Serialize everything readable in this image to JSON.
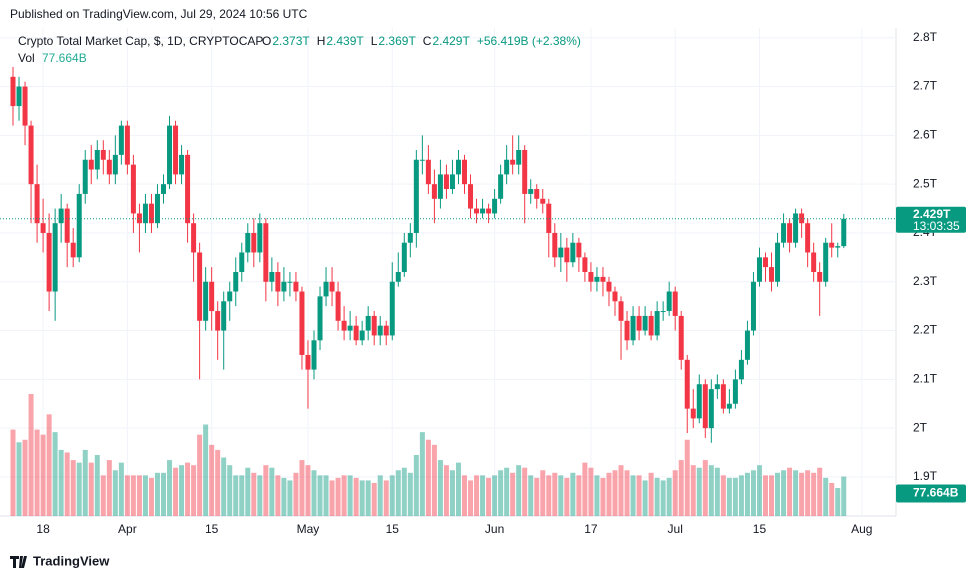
{
  "header": {
    "published": "Published on TradingView.com, Jul 29, 2024 10:56 UTC"
  },
  "legend": {
    "name": "Crypto Total Market Cap, $, 1D, CRYPTOCAP",
    "ohlc": [
      {
        "label": "O",
        "value": "2.373T"
      },
      {
        "label": "H",
        "value": "2.439T"
      },
      {
        "label": "L",
        "value": "2.369T"
      },
      {
        "label": "C",
        "value": "2.429T"
      }
    ],
    "change": "+56.419B (+2.38%)",
    "vol_label": "Vol",
    "vol_value": "77.664B"
  },
  "chart_data": {
    "type": "candlestick",
    "up_color": "#089981",
    "down_color": "#f23645",
    "ylim": [
      1.82,
      2.82
    ],
    "yticks": [
      {
        "value": 2.8,
        "label": "2.8T"
      },
      {
        "value": 2.7,
        "label": "2.7T"
      },
      {
        "value": 2.6,
        "label": "2.6T"
      },
      {
        "value": 2.5,
        "label": "2.5T"
      },
      {
        "value": 2.4,
        "label": "2.4T"
      },
      {
        "value": 2.3,
        "label": "2.3T"
      },
      {
        "value": 2.2,
        "label": "2.2T"
      },
      {
        "value": 2.1,
        "label": "2.1T"
      },
      {
        "value": 2.0,
        "label": "2T"
      },
      {
        "value": 1.9,
        "label": "1.9T"
      }
    ],
    "xticks": [
      {
        "value": 5,
        "label": "18"
      },
      {
        "value": 19,
        "label": "Apr"
      },
      {
        "value": 33,
        "label": "15"
      },
      {
        "value": 49,
        "label": "May"
      },
      {
        "value": 63,
        "label": "15"
      },
      {
        "value": 80,
        "label": "Jun"
      },
      {
        "value": 96,
        "label": "17"
      },
      {
        "value": 110,
        "label": "Jul"
      },
      {
        "value": 124,
        "label": "15"
      },
      {
        "value": 141,
        "label": "Aug"
      }
    ],
    "open": [
      2.72,
      2.66,
      2.7,
      2.62,
      2.5,
      2.42,
      2.4,
      2.28,
      2.42,
      2.45,
      2.38,
      2.35,
      2.48,
      2.55,
      2.53,
      2.57,
      2.55,
      2.52,
      2.56,
      2.62,
      2.54,
      2.44,
      2.42,
      2.46,
      2.42,
      2.48,
      2.5,
      2.62,
      2.52,
      2.56,
      2.42,
      2.36,
      2.22,
      2.3,
      2.24,
      2.2,
      2.26,
      2.28,
      2.32,
      2.36,
      2.4,
      2.36,
      2.42,
      2.3,
      2.32,
      2.28,
      2.3,
      2.3,
      2.28,
      2.15,
      2.12,
      2.18,
      2.27,
      2.3,
      2.28,
      2.22,
      2.2,
      2.21,
      2.18,
      2.2,
      2.23,
      2.19,
      2.21,
      2.19,
      2.3,
      2.32,
      2.38,
      2.4,
      2.55,
      2.55,
      2.5,
      2.47,
      2.52,
      2.49,
      2.52,
      2.55,
      2.5,
      2.45,
      2.44,
      2.45,
      2.44,
      2.47,
      2.52,
      2.55,
      2.54,
      2.57,
      2.48,
      2.49,
      2.47,
      2.46,
      2.4,
      2.35,
      2.37,
      2.34,
      2.38,
      2.35,
      2.32,
      2.3,
      2.31,
      2.3,
      2.28,
      2.26,
      2.22,
      2.18,
      2.23,
      2.2,
      2.23,
      2.19,
      2.24,
      2.24,
      2.28,
      2.23,
      2.14,
      2.04,
      2.02,
      2.09,
      2.0,
      2.08,
      2.09,
      2.04,
      2.05,
      2.1,
      2.14,
      2.2,
      2.3,
      2.35,
      2.33,
      2.3,
      2.38,
      2.42,
      2.38,
      2.44,
      2.42,
      2.36,
      2.32,
      2.3,
      2.38,
      2.37,
      2.373
    ],
    "high": [
      2.74,
      2.72,
      2.71,
      2.63,
      2.54,
      2.47,
      2.44,
      2.45,
      2.48,
      2.46,
      2.41,
      2.5,
      2.57,
      2.58,
      2.59,
      2.59,
      2.57,
      2.6,
      2.63,
      2.63,
      2.56,
      2.46,
      2.48,
      2.48,
      2.5,
      2.52,
      2.64,
      2.63,
      2.58,
      2.57,
      2.44,
      2.38,
      2.33,
      2.33,
      2.26,
      2.28,
      2.3,
      2.35,
      2.38,
      2.42,
      2.43,
      2.44,
      2.43,
      2.35,
      2.34,
      2.33,
      2.32,
      2.32,
      2.29,
      2.18,
      2.2,
      2.29,
      2.33,
      2.33,
      2.3,
      2.25,
      2.24,
      2.23,
      2.22,
      2.25,
      2.24,
      2.23,
      2.22,
      2.34,
      2.36,
      2.4,
      2.42,
      2.57,
      2.6,
      2.58,
      2.53,
      2.55,
      2.54,
      2.55,
      2.57,
      2.56,
      2.52,
      2.47,
      2.47,
      2.46,
      2.49,
      2.54,
      2.58,
      2.6,
      2.6,
      2.58,
      2.51,
      2.5,
      2.49,
      2.47,
      2.42,
      2.4,
      2.39,
      2.4,
      2.39,
      2.36,
      2.34,
      2.33,
      2.33,
      2.31,
      2.29,
      2.27,
      2.24,
      2.25,
      2.25,
      2.25,
      2.24,
      2.26,
      2.26,
      2.3,
      2.29,
      2.24,
      2.15,
      2.08,
      2.11,
      2.1,
      2.1,
      2.11,
      2.1,
      2.08,
      2.12,
      2.16,
      2.22,
      2.32,
      2.37,
      2.36,
      2.36,
      2.4,
      2.44,
      2.43,
      2.45,
      2.45,
      2.43,
      2.38,
      2.34,
      2.39,
      2.42,
      2.38,
      2.439
    ],
    "low": [
      2.62,
      2.63,
      2.58,
      2.42,
      2.38,
      2.36,
      2.24,
      2.22,
      2.38,
      2.33,
      2.33,
      2.34,
      2.46,
      2.5,
      2.51,
      2.52,
      2.5,
      2.5,
      2.54,
      2.52,
      2.4,
      2.36,
      2.4,
      2.4,
      2.41,
      2.46,
      2.49,
      2.5,
      2.5,
      2.38,
      2.3,
      2.1,
      2.2,
      2.2,
      2.14,
      2.12,
      2.22,
      2.25,
      2.3,
      2.34,
      2.33,
      2.34,
      2.26,
      2.28,
      2.25,
      2.26,
      2.27,
      2.26,
      2.12,
      2.04,
      2.1,
      2.16,
      2.25,
      2.25,
      2.2,
      2.18,
      2.18,
      2.17,
      2.17,
      2.18,
      2.17,
      2.17,
      2.17,
      2.18,
      2.29,
      2.31,
      2.35,
      2.37,
      2.52,
      2.48,
      2.42,
      2.45,
      2.47,
      2.48,
      2.5,
      2.48,
      2.43,
      2.42,
      2.43,
      2.42,
      2.43,
      2.46,
      2.5,
      2.52,
      2.52,
      2.42,
      2.46,
      2.45,
      2.44,
      2.35,
      2.33,
      2.32,
      2.3,
      2.33,
      2.32,
      2.3,
      2.28,
      2.28,
      2.27,
      2.25,
      2.23,
      2.14,
      2.16,
      2.17,
      2.18,
      2.19,
      2.18,
      2.18,
      2.22,
      2.23,
      2.2,
      2.12,
      1.99,
      2.0,
      2.01,
      1.98,
      1.97,
      2.06,
      2.03,
      2.03,
      2.04,
      2.09,
      2.13,
      2.19,
      2.29,
      2.3,
      2.28,
      2.29,
      2.37,
      2.36,
      2.37,
      2.39,
      2.33,
      2.3,
      2.23,
      2.29,
      2.35,
      2.35,
      2.369
    ],
    "close": [
      2.66,
      2.7,
      2.62,
      2.5,
      2.42,
      2.4,
      2.28,
      2.42,
      2.45,
      2.38,
      2.35,
      2.48,
      2.55,
      2.53,
      2.57,
      2.55,
      2.52,
      2.56,
      2.62,
      2.54,
      2.44,
      2.42,
      2.46,
      2.42,
      2.48,
      2.5,
      2.62,
      2.52,
      2.56,
      2.42,
      2.36,
      2.22,
      2.3,
      2.24,
      2.2,
      2.26,
      2.28,
      2.32,
      2.36,
      2.4,
      2.36,
      2.42,
      2.3,
      2.32,
      2.28,
      2.3,
      2.3,
      2.28,
      2.15,
      2.12,
      2.18,
      2.27,
      2.3,
      2.28,
      2.22,
      2.2,
      2.21,
      2.18,
      2.2,
      2.23,
      2.19,
      2.21,
      2.19,
      2.3,
      2.32,
      2.38,
      2.4,
      2.55,
      2.55,
      2.5,
      2.47,
      2.52,
      2.49,
      2.52,
      2.55,
      2.5,
      2.45,
      2.44,
      2.45,
      2.44,
      2.47,
      2.52,
      2.55,
      2.54,
      2.57,
      2.48,
      2.49,
      2.47,
      2.46,
      2.4,
      2.35,
      2.37,
      2.34,
      2.38,
      2.35,
      2.32,
      2.3,
      2.31,
      2.3,
      2.28,
      2.26,
      2.22,
      2.18,
      2.23,
      2.2,
      2.23,
      2.19,
      2.24,
      2.24,
      2.28,
      2.23,
      2.14,
      2.04,
      2.02,
      2.09,
      2.0,
      2.08,
      2.09,
      2.04,
      2.05,
      2.1,
      2.14,
      2.2,
      2.3,
      2.35,
      2.33,
      2.3,
      2.38,
      2.42,
      2.38,
      2.44,
      2.42,
      2.36,
      2.32,
      2.3,
      2.38,
      2.37,
      2.373,
      2.429
    ],
    "volume": [
      170,
      145,
      150,
      240,
      170,
      160,
      200,
      165,
      130,
      125,
      110,
      105,
      130,
      105,
      120,
      80,
      110,
      90,
      105,
      80,
      80,
      80,
      80,
      75,
      85,
      85,
      110,
      95,
      100,
      105,
      100,
      160,
      180,
      140,
      130,
      115,
      100,
      80,
      80,
      95,
      85,
      80,
      100,
      95,
      80,
      75,
      70,
      85,
      110,
      100,
      90,
      80,
      80,
      70,
      75,
      80,
      80,
      75,
      70,
      70,
      65,
      80,
      70,
      80,
      90,
      95,
      85,
      120,
      165,
      150,
      140,
      110,
      100,
      90,
      105,
      80,
      70,
      80,
      80,
      75,
      80,
      90,
      95,
      85,
      100,
      95,
      80,
      75,
      90,
      80,
      85,
      80,
      75,
      85,
      80,
      105,
      95,
      80,
      75,
      85,
      90,
      100,
      90,
      80,
      80,
      70,
      85,
      75,
      70,
      75,
      90,
      110,
      150,
      100,
      95,
      110,
      100,
      95,
      80,
      75,
      75,
      80,
      85,
      90,
      100,
      80,
      80,
      85,
      90,
      95,
      90,
      85,
      90,
      85,
      95,
      75,
      65,
      55,
      77.664
    ],
    "last_price_label": "2.429T",
    "countdown": "13:03:35",
    "last_volume_label": "77.664B"
  },
  "footer": {
    "brand": "TradingView"
  }
}
